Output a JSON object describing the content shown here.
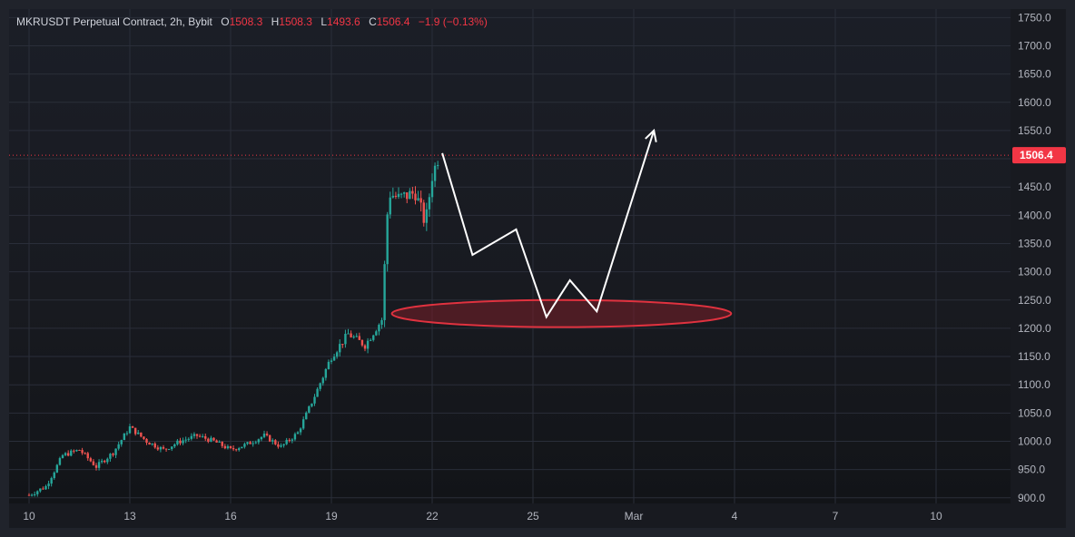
{
  "legend": {
    "symbol": "MKRUSDT Perpetual Contract, 2h, Bybit",
    "o_label": "O",
    "o_value": "1508.3",
    "h_label": "H",
    "h_value": "1508.3",
    "l_label": "L",
    "l_value": "1493.6",
    "c_label": "C",
    "c_value": "1506.4",
    "change": "−1.9 (−0.13%)"
  },
  "colors": {
    "up": "#26a69a",
    "down": "#ef5350",
    "last_price_tag": "#f23645",
    "drawing_line": "#ffffff",
    "zone_stroke": "#e0323f",
    "zone_fill": "#7a1f28"
  },
  "chart_data": {
    "type": "candlestick",
    "y_axis_ticks": [
      "1750.0",
      "1700.0",
      "1650.0",
      "1600.0",
      "1550.0",
      "1500.0",
      "1450.0",
      "1400.0",
      "1350.0",
      "1300.0",
      "1250.0",
      "1200.0",
      "1150.0",
      "1100.0",
      "1050.0",
      "1000.0",
      "950.0",
      "900.0"
    ],
    "ylim": [
      890,
      1765
    ],
    "x_axis_ticks": [
      "10",
      "13",
      "16",
      "19",
      "22",
      "25",
      "Mar",
      "4",
      "7",
      "10"
    ],
    "last_price": 1506.4,
    "last_price_label": "1506.4",
    "approx_close_path": [
      {
        "day": 10.0,
        "close": 905
      },
      {
        "day": 10.5,
        "close": 920
      },
      {
        "day": 11.0,
        "close": 975
      },
      {
        "day": 11.5,
        "close": 985
      },
      {
        "day": 12.0,
        "close": 955
      },
      {
        "day": 12.5,
        "close": 980
      },
      {
        "day": 13.0,
        "close": 1025
      },
      {
        "day": 13.5,
        "close": 1000
      },
      {
        "day": 14.0,
        "close": 985
      },
      {
        "day": 14.5,
        "close": 1000
      },
      {
        "day": 15.0,
        "close": 1010
      },
      {
        "day": 15.5,
        "close": 1000
      },
      {
        "day": 16.0,
        "close": 985
      },
      {
        "day": 16.5,
        "close": 995
      },
      {
        "day": 17.0,
        "close": 1010
      },
      {
        "day": 17.5,
        "close": 990
      },
      {
        "day": 18.0,
        "close": 1015
      },
      {
        "day": 18.5,
        "close": 1080
      },
      {
        "day": 19.0,
        "close": 1150
      },
      {
        "day": 19.5,
        "close": 1190
      },
      {
        "day": 20.0,
        "close": 1170
      },
      {
        "day": 20.5,
        "close": 1215
      },
      {
        "day": 20.7,
        "close": 1440
      },
      {
        "day": 21.0,
        "close": 1430
      },
      {
        "day": 21.5,
        "close": 1440
      },
      {
        "day": 21.8,
        "close": 1385
      },
      {
        "day": 22.0,
        "close": 1470
      },
      {
        "day": 22.2,
        "close": 1506.4
      }
    ],
    "projection_path": [
      {
        "day": 22.3,
        "price": 1510
      },
      {
        "day": 23.2,
        "price": 1330
      },
      {
        "day": 24.5,
        "price": 1375
      },
      {
        "day": 25.4,
        "price": 1220
      },
      {
        "day": 26.1,
        "price": 1285
      },
      {
        "day": 26.9,
        "price": 1230
      },
      {
        "day": 28.6,
        "price": 1550
      }
    ],
    "support_zone": {
      "day_start": 20.8,
      "day_end": 30.9,
      "price_center": 1226,
      "price_half_height": 24
    }
  }
}
